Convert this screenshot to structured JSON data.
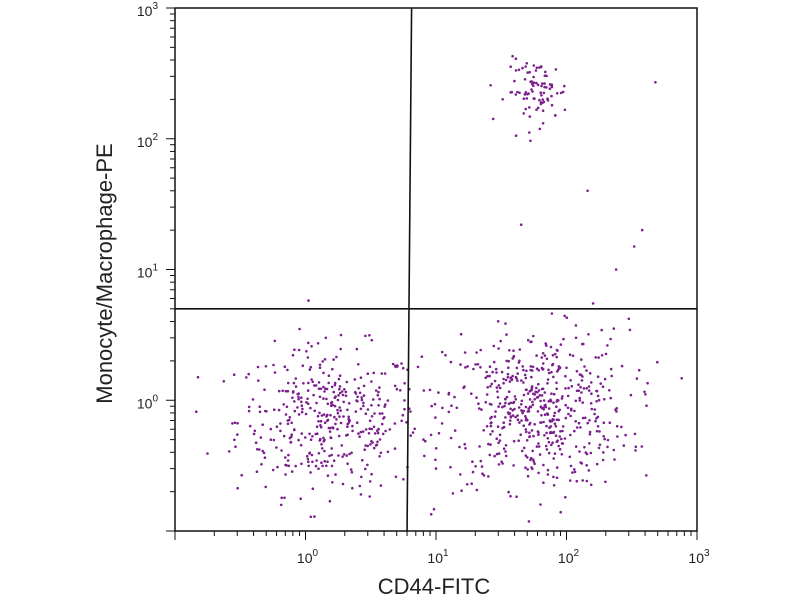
{
  "chart_data": {
    "type": "scatter",
    "title": "",
    "xlabel": "CD44-FITC",
    "ylabel": "Monocyte/Macrophage-PE",
    "x_scale": "log",
    "y_scale": "log",
    "xlim": [
      0.1,
      1000
    ],
    "ylim": [
      0.1,
      1000
    ],
    "x_ticks": [
      {
        "value": 1,
        "base": "10",
        "exp": "0"
      },
      {
        "value": 10,
        "base": "10",
        "exp": "1"
      },
      {
        "value": 100,
        "base": "10",
        "exp": "2"
      },
      {
        "value": 1000,
        "base": "10",
        "exp": "3"
      }
    ],
    "y_ticks": [
      {
        "value": 1,
        "base": "10",
        "exp": "0"
      },
      {
        "value": 10,
        "base": "10",
        "exp": "1"
      },
      {
        "value": 100,
        "base": "10",
        "exp": "2"
      },
      {
        "value": 1000,
        "base": "10",
        "exp": "3"
      }
    ],
    "gates": {
      "vertical_line": {
        "x_top": 6.5,
        "x_bottom": 6.0
      },
      "horizontal_line": {
        "y": 5.0
      }
    },
    "point_color": "#7a1f8c",
    "populations": [
      {
        "center": [
          1.5,
          0.7
        ],
        "spread_decades": [
          0.35,
          0.28
        ],
        "count": 420
      },
      {
        "center": [
          60,
          0.85
        ],
        "spread_decades": [
          0.35,
          0.3
        ],
        "count": 560
      },
      {
        "center": [
          60,
          230
        ],
        "spread_decades": [
          0.12,
          0.12
        ],
        "count": 90
      }
    ],
    "scattered_points": [
      {
        "x": 0.15,
        "y": 1.5
      },
      {
        "x": 45,
        "y": 22
      },
      {
        "x": 145,
        "y": 40
      },
      {
        "x": 480,
        "y": 270
      },
      {
        "x": 380,
        "y": 20
      },
      {
        "x": 330,
        "y": 15
      },
      {
        "x": 240,
        "y": 10
      },
      {
        "x": 300,
        "y": 4.2
      },
      {
        "x": 160,
        "y": 5.5
      },
      {
        "x": 8,
        "y": 0.5
      },
      {
        "x": 10,
        "y": 0.3
      },
      {
        "x": 9,
        "y": 1.2
      }
    ]
  }
}
